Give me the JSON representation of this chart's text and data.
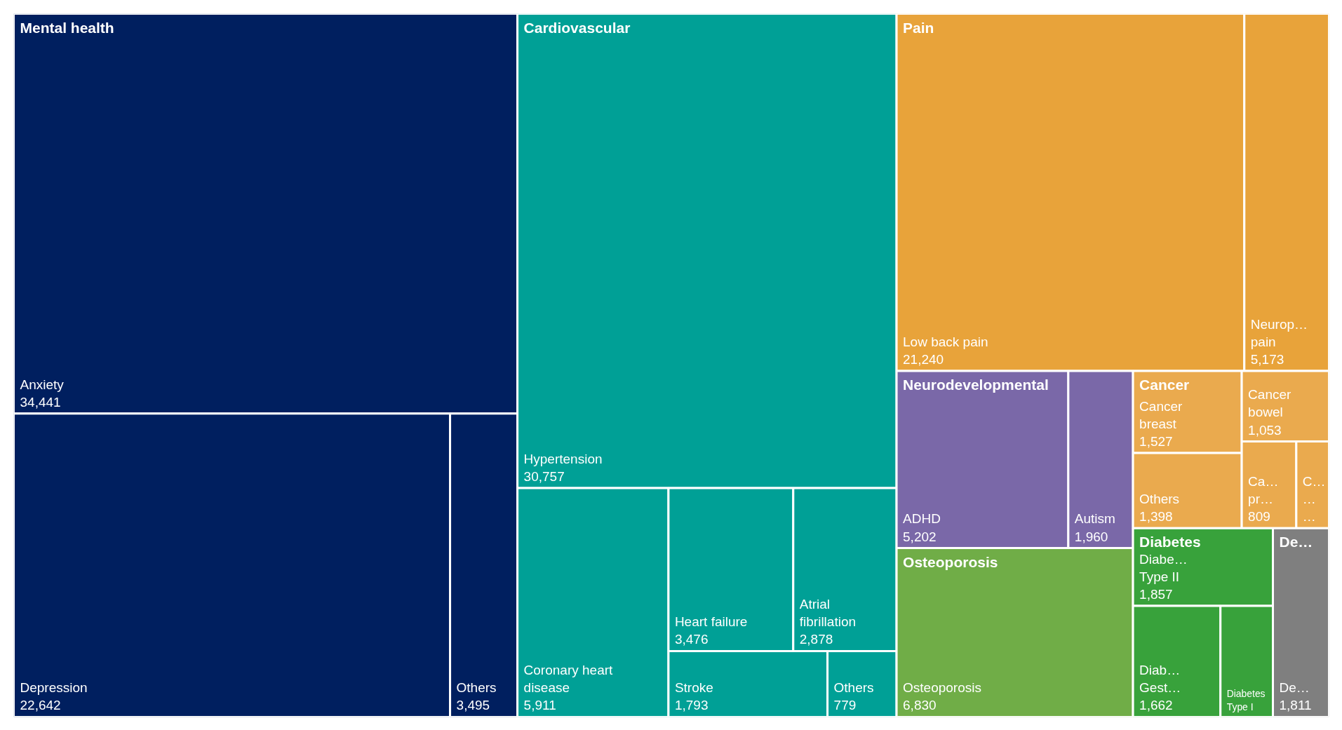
{
  "chart_data": {
    "type": "other",
    "annotations": [
      "Mental health",
      "Cardiovascular",
      "Pain",
      "Neurodevelopmental",
      "Osteoporosis",
      "Cancer",
      "Diabetes",
      "De…"
    ],
    "categories": [
      "Anxiety",
      "Depression",
      "Others",
      "Hypertension",
      "Coronary heart\ndisease",
      "Heart failure",
      "Atrial\nfibrillation",
      "Stroke",
      "Others",
      "Low back pain",
      "Neurop…\npain",
      "ADHD",
      "Autism",
      "Osteoporosis",
      "Cancer\nbreast",
      "Others",
      "Cancer\nbowel",
      "Ca…\npr…",
      "C…\n…\n…",
      "Diabe…\nType II",
      "Diab…\nGest…",
      "Diabetes Type I",
      "De…"
    ],
    "values": [
      34441,
      22642,
      3495,
      30757,
      5911,
      3476,
      2878,
      1793,
      779,
      21240,
      5173,
      5202,
      1960,
      6830,
      1527,
      1398,
      1053,
      809,
      null,
      1857,
      1662,
      null,
      1811
    ],
    "value_labels": [
      "34,441",
      "22,642",
      "3,495",
      "30,757",
      "5,911",
      "3,476",
      "2,878",
      "1,793",
      "779",
      "21,240",
      "5,173",
      "5,202",
      "1,960",
      "6,830",
      "1,527",
      "1,398",
      "1,053",
      "809",
      null,
      "1,857",
      "1,662",
      null,
      "1,811"
    ],
    "colors": [
      "#001f5f",
      "#001f5f",
      "#001f5f",
      "#00a096",
      "#00a096",
      "#00a096",
      "#00a096",
      "#00a096",
      "#00a096",
      "#e8a33a",
      "#e8a33a",
      "#7a68a8",
      "#7a68a8",
      "#70ad47",
      "#eaaa4e",
      "#eaaa4e",
      "#eaaa4e",
      "#eaaa4e",
      "#eaaa4e",
      "#38a23b",
      "#38a23b",
      "#38a23b",
      "#7f7f7f"
    ]
  }
}
